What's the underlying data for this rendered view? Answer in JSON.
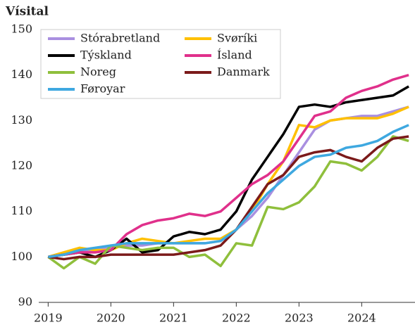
{
  "chart_data": {
    "type": "line",
    "title": "Vísital",
    "x": [
      2019,
      2019.25,
      2019.5,
      2019.75,
      2020,
      2020.25,
      2020.5,
      2020.75,
      2021,
      2021.25,
      2021.5,
      2021.75,
      2022,
      2022.25,
      2022.5,
      2022.75,
      2023,
      2023.25,
      2023.5,
      2023.75,
      2024,
      2024.25,
      2024.5,
      2024.75
    ],
    "xlim": [
      2018.85,
      2024.85
    ],
    "xticks": [
      2019,
      2020,
      2021,
      2022,
      2023,
      2024
    ],
    "ylim": [
      90,
      150
    ],
    "yticks": [
      90,
      100,
      110,
      120,
      130,
      140,
      150
    ],
    "grid": false,
    "legend": "upper left",
    "series": [
      {
        "name": "Stórabretland",
        "color": "#a98fe0",
        "values": [
          100,
          100.5,
          101,
          101.5,
          102,
          102.5,
          102.5,
          103,
          103,
          103,
          103,
          103.5,
          106,
          109,
          113,
          118,
          123,
          128,
          130,
          130.5,
          131,
          131,
          132,
          133
        ]
      },
      {
        "name": "Svøríki",
        "color": "#ffc000",
        "values": [
          100,
          101,
          102,
          101.5,
          101.5,
          103,
          104,
          103.5,
          103,
          103.5,
          104,
          104,
          106,
          110,
          116,
          121,
          129,
          128.5,
          130,
          130.5,
          130.5,
          130.5,
          131.5,
          133
        ]
      },
      {
        "name": "Týskland",
        "color": "#000000",
        "values": [
          100,
          100.5,
          101,
          100,
          101.5,
          104,
          101,
          101.5,
          104.5,
          105.5,
          105,
          106,
          110,
          117,
          122,
          127,
          133,
          133.5,
          133,
          134,
          134.5,
          135,
          135.5,
          137.5
        ]
      },
      {
        "name": "Ísland",
        "color": "#e0308b",
        "values": [
          100,
          100.5,
          101,
          101,
          101.5,
          105,
          107,
          108,
          108.5,
          109.5,
          109,
          110,
          113,
          116,
          118,
          121,
          126,
          131,
          132,
          135,
          136.5,
          137.5,
          139,
          140
        ]
      },
      {
        "name": "Noreg",
        "color": "#8fbf3c",
        "values": [
          100,
          97.5,
          100,
          98.5,
          102.5,
          102,
          101.5,
          102,
          102,
          100,
          100.5,
          98,
          103,
          102.5,
          111,
          110.5,
          112,
          115.5,
          121,
          120.5,
          119,
          122,
          126.5,
          125.5
        ]
      },
      {
        "name": "Danmark",
        "color": "#7b1a1a",
        "values": [
          100,
          99.5,
          100,
          100,
          100.5,
          100.5,
          100.5,
          100.5,
          100.5,
          101,
          101.5,
          102.5,
          106,
          111,
          116,
          118,
          122,
          123,
          123.5,
          122,
          121,
          124,
          126,
          126.5
        ]
      },
      {
        "name": "Føroyar",
        "color": "#3ea8e0",
        "values": [
          100,
          100.5,
          101.5,
          102,
          102.5,
          103,
          103,
          103,
          103,
          103,
          103,
          103.5,
          106,
          110,
          114,
          117,
          120,
          122,
          122.5,
          124,
          124.5,
          125.5,
          127.5,
          129
        ]
      }
    ]
  }
}
